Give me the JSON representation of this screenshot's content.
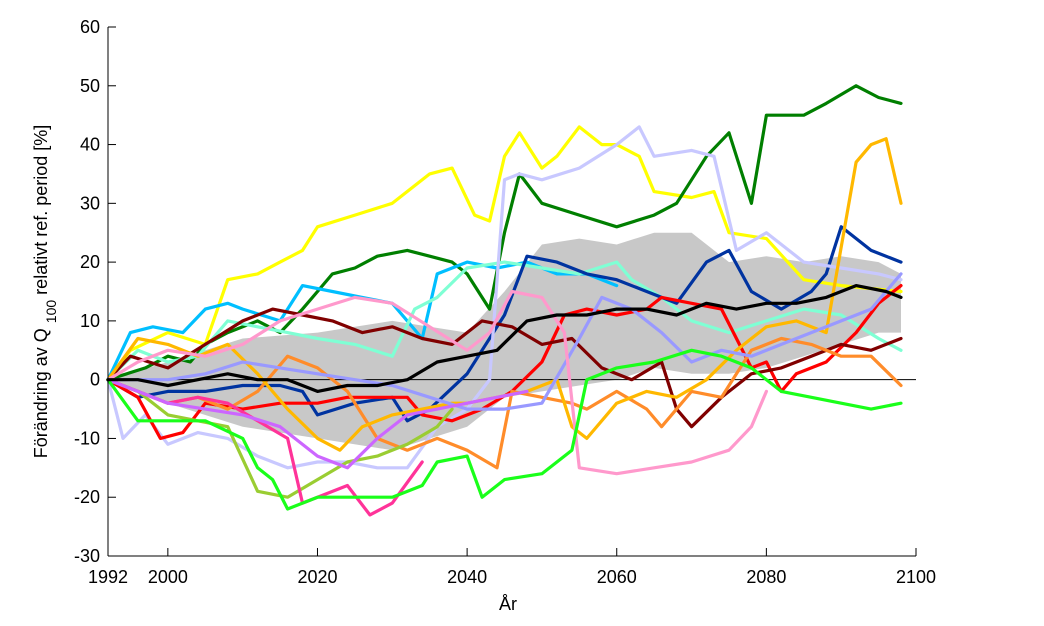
{
  "chart_data": {
    "type": "line",
    "xlabel": "År",
    "ylabel": "Förändring av Q 100 relativt ref. period [%]",
    "ylabel_parts": {
      "before": "Förändring av Q",
      "sub": "100",
      "after": " relativt ref. period [%]"
    },
    "xlim": [
      1992,
      2100
    ],
    "ylim": [
      -30,
      60
    ],
    "x_ticks": [
      1992,
      2000,
      2020,
      2040,
      2060,
      2080,
      2100
    ],
    "y_ticks": [
      -30,
      -20,
      -10,
      0,
      10,
      20,
      30,
      40,
      50,
      60
    ],
    "grid": false,
    "legend": "none",
    "band": {
      "color": "#c8c8c8",
      "x": [
        1992,
        2000,
        2010,
        2020,
        2030,
        2040,
        2045,
        2050,
        2055,
        2060,
        2065,
        2070,
        2075,
        2080,
        2085,
        2090,
        2095,
        2098
      ],
      "upper": [
        0,
        3,
        7,
        8,
        10,
        8,
        15,
        23,
        24,
        23,
        25,
        25,
        20,
        21,
        20,
        21,
        20,
        18
      ],
      "lower": [
        0,
        -4,
        -8,
        -10,
        -12,
        -8,
        -3,
        -2,
        -1,
        0,
        2,
        1,
        1,
        2,
        4,
        6,
        8,
        8
      ]
    },
    "series": [
      {
        "color": "#ffff00",
        "x": [
          1992,
          1995,
          2000,
          2005,
          2008,
          2012,
          2015,
          2018,
          2020,
          2025,
          2030,
          2035,
          2038,
          2041,
          2043,
          2045,
          2047,
          2050,
          2052,
          2055,
          2058,
          2060,
          2063,
          2065,
          2070,
          2073,
          2075,
          2080,
          2085,
          2090,
          2098
        ],
        "y": [
          0,
          5,
          8,
          6,
          17,
          18,
          20,
          22,
          26,
          28,
          30,
          35,
          36,
          28,
          27,
          38,
          42,
          36,
          38,
          43,
          40,
          40,
          38,
          32,
          31,
          32,
          25,
          24,
          17,
          16,
          15
        ]
      },
      {
        "color": "#007f00",
        "x": [
          1992,
          1997,
          2000,
          2003,
          2005,
          2008,
          2012,
          2015,
          2018,
          2020,
          2022,
          2025,
          2028,
          2032,
          2035,
          2038,
          2040,
          2043,
          2045,
          2047,
          2050,
          2055,
          2060,
          2065,
          2068,
          2072,
          2075,
          2078,
          2080,
          2085,
          2088,
          2092,
          2095,
          2098
        ],
        "y": [
          0,
          2,
          4,
          3,
          6,
          8,
          10,
          8,
          12,
          15,
          18,
          19,
          21,
          22,
          21,
          20,
          18,
          12,
          25,
          35,
          30,
          28,
          26,
          28,
          30,
          38,
          42,
          30,
          45,
          45,
          47,
          50,
          48,
          47
        ]
      },
      {
        "color": "#00bfff",
        "x": [
          1992,
          1995,
          1998,
          2002,
          2005,
          2008,
          2010,
          2015,
          2018,
          2022,
          2026,
          2030,
          2034,
          2036,
          2040,
          2044,
          2048,
          2052,
          2056,
          2060
        ],
        "y": [
          0,
          8,
          9,
          8,
          12,
          13,
          12,
          10,
          16,
          15,
          14,
          13,
          7,
          18,
          20,
          19,
          20,
          18,
          18,
          16
        ]
      },
      {
        "color": "#7fffd4",
        "x": [
          1992,
          1996,
          2000,
          2004,
          2008,
          2012,
          2016,
          2020,
          2025,
          2030,
          2033,
          2036,
          2040,
          2045,
          2050,
          2055,
          2060,
          2062,
          2066,
          2070,
          2075,
          2080,
          2085,
          2090,
          2095,
          2098
        ],
        "y": [
          0,
          5,
          3,
          4,
          10,
          9,
          8,
          7,
          6,
          4,
          12,
          14,
          19,
          20,
          19,
          18,
          20,
          17,
          14,
          10,
          8,
          10,
          12,
          11,
          7,
          5
        ]
      },
      {
        "color": "#0033a0",
        "x": [
          1992,
          1996,
          2000,
          2005,
          2010,
          2015,
          2018,
          2020,
          2025,
          2030,
          2032,
          2035,
          2040,
          2045,
          2048,
          2052,
          2056,
          2060,
          2064,
          2068,
          2072,
          2075,
          2078,
          2082,
          2086,
          2088,
          2090,
          2094,
          2098
        ],
        "y": [
          0,
          -3,
          -2,
          -2,
          -1,
          -1,
          -2,
          -6,
          -4,
          -3,
          -7,
          -5,
          1,
          11,
          21,
          20,
          18,
          17,
          15,
          13,
          20,
          22,
          15,
          12,
          15,
          18,
          26,
          22,
          20
        ]
      },
      {
        "color": "#c8c8ff",
        "x": [
          1992,
          1994,
          1997,
          2000,
          2004,
          2008,
          2012,
          2016,
          2020,
          2024,
          2028,
          2032,
          2036,
          2040,
          2043,
          2045,
          2047,
          2050,
          2055,
          2060,
          2063,
          2065,
          2070,
          2073,
          2076,
          2080,
          2085,
          2090,
          2095,
          2098
        ],
        "y": [
          0,
          -10,
          -6,
          -11,
          -9,
          -10,
          -13,
          -15,
          -14,
          -14,
          -15,
          -15,
          -8,
          -5,
          0,
          34,
          35,
          34,
          36,
          40,
          43,
          38,
          39,
          38,
          22,
          25,
          20,
          19,
          18,
          17
        ]
      },
      {
        "color": "#ff0000",
        "x": [
          1992,
          1996,
          1999,
          2002,
          2005,
          2010,
          2015,
          2020,
          2024,
          2028,
          2032,
          2034,
          2038,
          2042,
          2046,
          2050,
          2053,
          2056,
          2060,
          2064,
          2066,
          2070,
          2074,
          2078,
          2080,
          2082,
          2084,
          2088,
          2092,
          2095,
          2098
        ],
        "y": [
          0,
          -3,
          -10,
          -9,
          -4,
          -5,
          -4,
          -4,
          -3,
          -3,
          -3,
          -6,
          -7,
          -5,
          -2,
          3,
          11,
          12,
          11,
          12,
          14,
          13,
          12,
          2,
          3,
          -2,
          1,
          3,
          8,
          13,
          16
        ]
      },
      {
        "color": "#800000",
        "x": [
          1992,
          1995,
          2000,
          2005,
          2010,
          2014,
          2018,
          2022,
          2026,
          2030,
          2034,
          2038,
          2042,
          2046,
          2050,
          2054,
          2058,
          2062,
          2066,
          2068,
          2070,
          2074,
          2078,
          2082,
          2086,
          2090,
          2094,
          2098
        ],
        "y": [
          0,
          4,
          2,
          6,
          10,
          12,
          11,
          10,
          8,
          9,
          7,
          6,
          10,
          9,
          6,
          7,
          2,
          0,
          3,
          -5,
          -8,
          -3,
          1,
          2,
          4,
          6,
          5,
          7
        ]
      },
      {
        "color": "#ff8c2a",
        "x": [
          1992,
          1996,
          2000,
          2004,
          2008,
          2012,
          2016,
          2020,
          2024,
          2028,
          2032,
          2036,
          2040,
          2044,
          2046,
          2050,
          2054,
          2056,
          2060,
          2064,
          2066,
          2070,
          2074,
          2078,
          2082,
          2086,
          2090,
          2094,
          2098
        ],
        "y": [
          0,
          -2,
          -4,
          -3,
          -5,
          -2,
          4,
          2,
          -2,
          -10,
          -12,
          -10,
          -12,
          -15,
          -2,
          -3,
          -4,
          -5,
          -2,
          -5,
          -8,
          -2,
          -3,
          5,
          7,
          6,
          4,
          4,
          -1
        ]
      },
      {
        "color": "#ffb800",
        "x": [
          1992,
          1996,
          2000,
          2004,
          2008,
          2012,
          2016,
          2020,
          2023,
          2026,
          2030,
          2034,
          2038,
          2040,
          2044,
          2048,
          2052,
          2054,
          2056,
          2060,
          2064,
          2068,
          2072,
          2076,
          2080,
          2084,
          2088,
          2092,
          2094,
          2096,
          2098
        ],
        "y": [
          0,
          7,
          6,
          4,
          6,
          1,
          -5,
          -10,
          -12,
          -8,
          -6,
          -5,
          -4,
          -4,
          -3,
          -2,
          0,
          -8,
          -10,
          -4,
          -2,
          -3,
          0,
          5,
          9,
          10,
          8,
          37,
          40,
          41,
          30
        ]
      },
      {
        "color": "#9999ff",
        "x": [
          1992,
          1996,
          2000,
          2005,
          2010,
          2015,
          2020,
          2025,
          2030,
          2035,
          2040,
          2045,
          2050,
          2055,
          2058,
          2062,
          2066,
          2070,
          2074,
          2078,
          2082,
          2086,
          2090,
          2094,
          2098
        ],
        "y": [
          0,
          0,
          0,
          1,
          3,
          2,
          1,
          0,
          -1,
          -3,
          -5,
          -5,
          -4,
          7,
          14,
          12,
          8,
          3,
          5,
          4,
          6,
          8,
          10,
          12,
          18
        ]
      },
      {
        "color": "#9acd32",
        "x": [
          1992,
          1996,
          2000,
          2004,
          2008,
          2012,
          2016,
          2020,
          2024,
          2028,
          2032,
          2036,
          2038
        ],
        "y": [
          0,
          -2,
          -6,
          -7,
          -8,
          -19,
          -20,
          -17,
          -14,
          -13,
          -11,
          -8,
          -5
        ]
      },
      {
        "color": "#ff3399",
        "x": [
          1992,
          1996,
          2000,
          2004,
          2008,
          2012,
          2016,
          2018,
          2020,
          2024,
          2027,
          2030,
          2034
        ],
        "y": [
          0,
          -2,
          -4,
          -3,
          -4,
          -7,
          -10,
          -21,
          -20,
          -18,
          -23,
          -21,
          -14
        ]
      },
      {
        "color": "#cc66ff",
        "x": [
          1992,
          1996,
          2000,
          2005,
          2010,
          2015,
          2020,
          2024,
          2028,
          2032,
          2036,
          2040,
          2044,
          2048
        ],
        "y": [
          0,
          -2,
          -4,
          -5,
          -6,
          -8,
          -13,
          -15,
          -10,
          -6,
          -5,
          -4,
          -3,
          -2
        ]
      },
      {
        "color": "#ff99cc",
        "x": [
          1992,
          1996,
          2000,
          2005,
          2010,
          2015,
          2020,
          2025,
          2030,
          2035,
          2040,
          2043,
          2046,
          2050,
          2053,
          2055,
          2060,
          2065,
          2070,
          2075,
          2078,
          2080
        ],
        "y": [
          0,
          3,
          5,
          4,
          6,
          10,
          12,
          14,
          13,
          9,
          5,
          8,
          15,
          14,
          8,
          -15,
          -16,
          -15,
          -14,
          -12,
          -8,
          -2
        ]
      },
      {
        "color": "#1aff1a",
        "x": [
          1992,
          1996,
          2000,
          2005,
          2010,
          2012,
          2014,
          2016,
          2020,
          2025,
          2030,
          2034,
          2036,
          2040,
          2042,
          2045,
          2050,
          2054,
          2056,
          2060,
          2065,
          2070,
          2074,
          2078,
          2082,
          2086,
          2090,
          2094,
          2098
        ],
        "y": [
          0,
          -7,
          -7,
          -7,
          -10,
          -15,
          -17,
          -22,
          -20,
          -20,
          -20,
          -18,
          -14,
          -13,
          -20,
          -17,
          -16,
          -12,
          0,
          2,
          3,
          5,
          4,
          2,
          -2,
          -3,
          -4,
          -5,
          -4
        ]
      },
      {
        "color": "#000000",
        "x": [
          1992,
          1996,
          2000,
          2004,
          2008,
          2012,
          2016,
          2020,
          2024,
          2028,
          2032,
          2036,
          2040,
          2044,
          2048,
          2052,
          2056,
          2060,
          2064,
          2068,
          2072,
          2076,
          2080,
          2084,
          2088,
          2092,
          2096,
          2098
        ],
        "y": [
          0,
          0,
          -1,
          0,
          1,
          0,
          0,
          -2,
          -1,
          -1,
          0,
          3,
          4,
          5,
          10,
          11,
          11,
          12,
          12,
          11,
          13,
          12,
          13,
          13,
          14,
          16,
          15,
          14
        ]
      }
    ]
  }
}
